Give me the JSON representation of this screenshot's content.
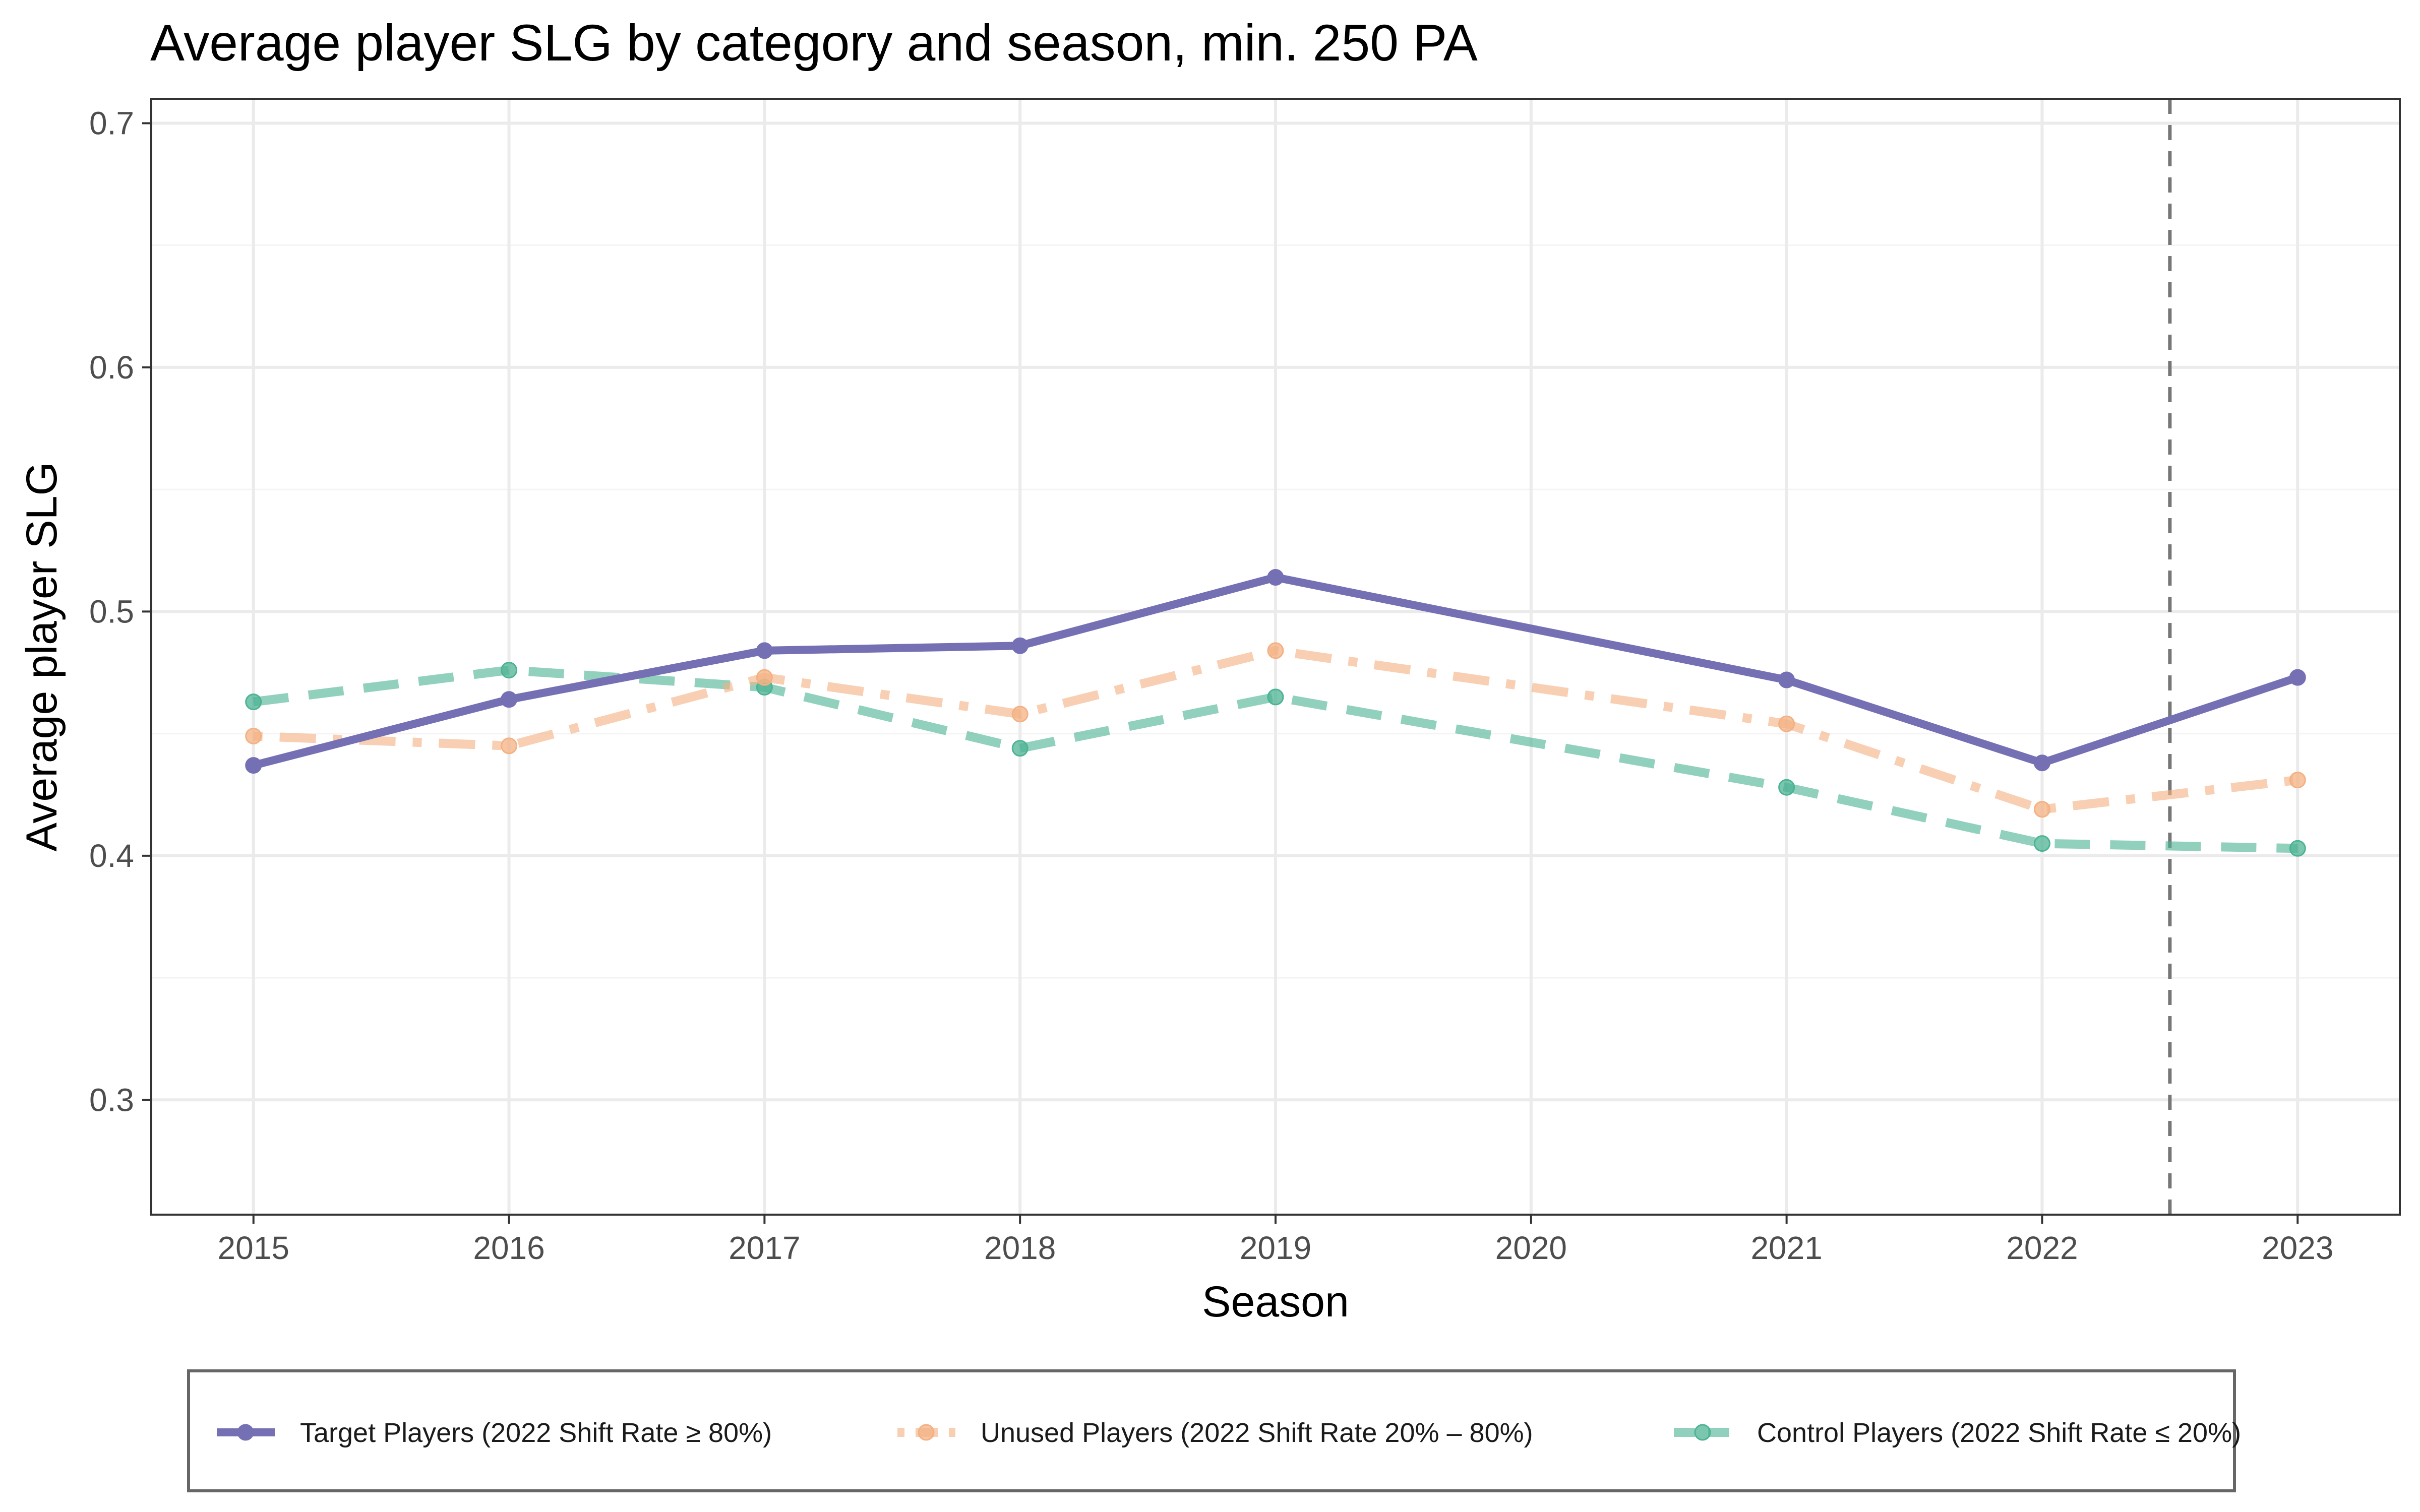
{
  "chart_data": {
    "type": "line",
    "title": "Average player SLG by category and season, min. 250 PA",
    "xlabel": "Season",
    "ylabel": "Average player SLG",
    "x": [
      2015,
      2016,
      2017,
      2018,
      2019,
      2020,
      2021,
      2022,
      2023
    ],
    "x_tick_labels": [
      "2015",
      "2016",
      "2017",
      "2018",
      "2019",
      "2020",
      "2021",
      "2022",
      "2023"
    ],
    "xlim": [
      2014.6,
      2023.4
    ],
    "ylim": [
      0.253,
      0.71
    ],
    "y_ticks": [
      0.3,
      0.4,
      0.5,
      0.6,
      0.7
    ],
    "y_tick_labels": [
      "0.3",
      "0.4",
      "0.5",
      "0.6",
      "0.7"
    ],
    "grid": true,
    "legend_position": "bottom",
    "reference_line": {
      "x": 2022.5,
      "style": "dashed",
      "color": "#777777"
    },
    "series": [
      {
        "name": "Target Players (2022 Shift Rate ≥ 80%)",
        "color": "#7570b3",
        "style": "solid",
        "points": [
          {
            "x": 2015,
            "y": 0.437
          },
          {
            "x": 2016,
            "y": 0.464
          },
          {
            "x": 2017,
            "y": 0.484
          },
          {
            "x": 2018,
            "y": 0.486
          },
          {
            "x": 2019,
            "y": 0.514
          },
          {
            "x": 2021,
            "y": 0.472
          },
          {
            "x": 2022,
            "y": 0.438
          },
          {
            "x": 2023,
            "y": 0.473
          }
        ]
      },
      {
        "name": "Unused Players (2022 Shift Rate 20% – 80%)",
        "color": "#f4b183",
        "style": "dotdash",
        "points": [
          {
            "x": 2015,
            "y": 0.449
          },
          {
            "x": 2016,
            "y": 0.445
          },
          {
            "x": 2017,
            "y": 0.473
          },
          {
            "x": 2018,
            "y": 0.458
          },
          {
            "x": 2019,
            "y": 0.484
          },
          {
            "x": 2021,
            "y": 0.454
          },
          {
            "x": 2022,
            "y": 0.419
          },
          {
            "x": 2023,
            "y": 0.431
          }
        ]
      },
      {
        "name": "Control Players (2022 Shift Rate ≤ 20%)",
        "color": "#4db394",
        "style": "dashed",
        "points": [
          {
            "x": 2015,
            "y": 0.463
          },
          {
            "x": 2016,
            "y": 0.476
          },
          {
            "x": 2017,
            "y": 0.469
          },
          {
            "x": 2018,
            "y": 0.444
          },
          {
            "x": 2019,
            "y": 0.465
          },
          {
            "x": 2021,
            "y": 0.428
          },
          {
            "x": 2022,
            "y": 0.405
          },
          {
            "x": 2023,
            "y": 0.403
          }
        ]
      }
    ]
  }
}
